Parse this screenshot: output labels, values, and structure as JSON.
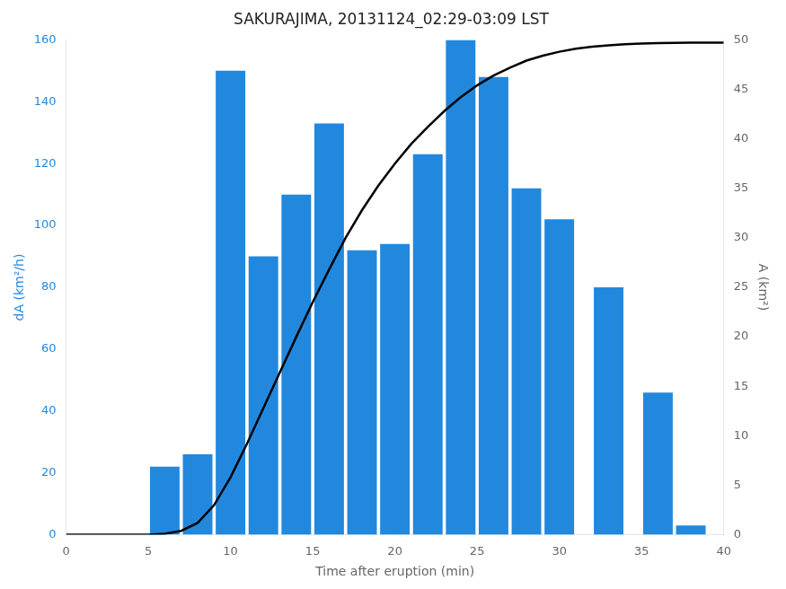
{
  "chart_data": {
    "type": "bar",
    "title": "SAKURAJIMA, 20131124_02:29-03:09 LST",
    "xlabel": "Time after eruption (min)",
    "ylabel": "dA (km²/h)",
    "y2label": "A (km²)",
    "series": [
      {
        "type": "bar",
        "color": "#2288DD",
        "x": [
          6,
          8,
          10,
          12,
          14,
          16,
          18,
          20,
          22,
          24,
          26,
          28,
          30,
          33,
          36,
          38
        ],
        "values": [
          22,
          26,
          150,
          90,
          110,
          133,
          92,
          94,
          123,
          160,
          148,
          112,
          102,
          80,
          46,
          3
        ]
      },
      {
        "type": "line",
        "color": "#000000",
        "axis": "y2",
        "x": [
          0,
          1,
          2,
          3,
          4,
          5,
          6,
          7,
          8,
          9,
          10,
          11,
          12,
          13,
          14,
          15,
          16,
          17,
          18,
          19,
          20,
          21,
          22,
          23,
          24,
          25,
          26,
          27,
          28,
          29,
          30,
          31,
          32,
          33,
          34,
          35,
          36,
          37,
          38,
          39,
          40
        ],
        "values": [
          0,
          0,
          0,
          0,
          0,
          0,
          0.1,
          0.4,
          1.2,
          3.0,
          5.8,
          9.2,
          12.8,
          16.4,
          20.0,
          23.5,
          26.8,
          30.0,
          32.8,
          35.3,
          37.5,
          39.5,
          41.2,
          42.8,
          44.2,
          45.4,
          46.4,
          47.2,
          47.9,
          48.4,
          48.8,
          49.1,
          49.3,
          49.45,
          49.55,
          49.62,
          49.67,
          49.7,
          49.72,
          49.73,
          49.73
        ]
      }
    ],
    "xlim": [
      0,
      40
    ],
    "xticks": [
      0,
      5,
      10,
      15,
      20,
      25,
      30,
      35,
      40
    ],
    "ylim": [
      0,
      160
    ],
    "yticks": [
      0,
      20,
      40,
      60,
      80,
      100,
      120,
      140,
      160
    ],
    "y2lim": [
      0,
      50
    ],
    "y2ticks": [
      0,
      5,
      10,
      15,
      20,
      25,
      30,
      35,
      40,
      45,
      50
    ],
    "grid": false
  }
}
